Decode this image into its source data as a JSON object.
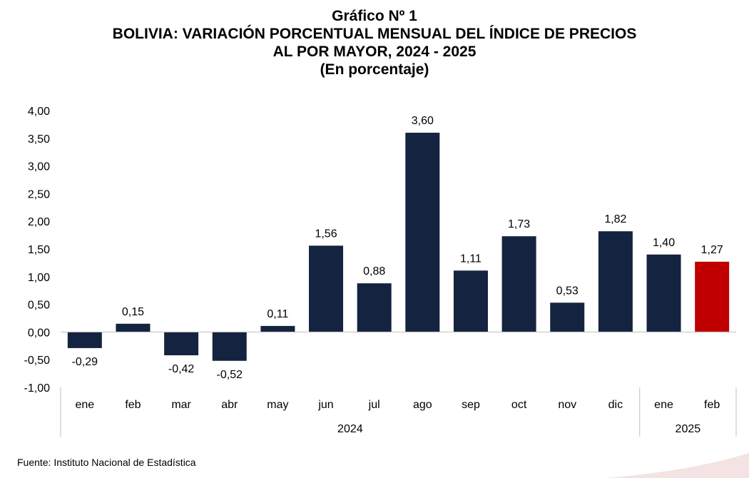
{
  "title": {
    "line1": "Gráfico Nº 1",
    "line2": "BOLIVIA: VARIACIÓN PORCENTUAL MENSUAL DEL ÍNDICE DE PRECIOS",
    "line3": "AL POR MAYOR, 2024 - 2025",
    "line4": "(En porcentaje)"
  },
  "source": "Fuente: Instituto Nacional de Estadística",
  "chart_data": {
    "type": "bar",
    "categories": [
      "ene",
      "feb",
      "mar",
      "abr",
      "may",
      "jun",
      "jul",
      "ago",
      "sep",
      "oct",
      "nov",
      "dic",
      "ene",
      "feb"
    ],
    "year_groups": [
      {
        "label": "2024",
        "count": 12
      },
      {
        "label": "2025",
        "count": 2
      }
    ],
    "values": [
      -0.29,
      0.15,
      -0.42,
      -0.52,
      0.11,
      1.56,
      0.88,
      3.6,
      1.11,
      1.73,
      0.53,
      1.82,
      1.4,
      1.27
    ],
    "value_labels": [
      "-0,29",
      "0,15",
      "-0,42",
      "-0,52",
      "0,11",
      "1,56",
      "0,88",
      "3,60",
      "1,11",
      "1,73",
      "0,53",
      "1,82",
      "1,40",
      "1,27"
    ],
    "yticks": [
      "-1,00",
      "-0,50",
      "0,00",
      "0,50",
      "1,00",
      "1,50",
      "2,00",
      "2,50",
      "3,00",
      "3,50",
      "4,00"
    ],
    "ylim": [
      -1,
      4
    ],
    "colors": {
      "default": "#14233f",
      "highlight": "#c00000",
      "axis": "#bfbfbf"
    },
    "highlight_index": 13,
    "grid": false
  }
}
